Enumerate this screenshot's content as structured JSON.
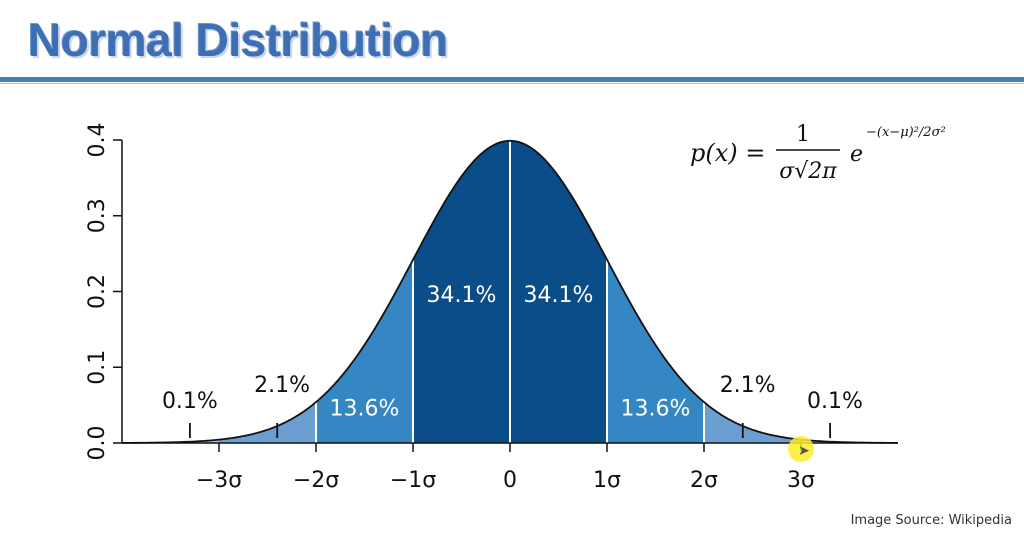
{
  "header": {
    "title": "Normal Distribution"
  },
  "footer": {
    "source": "Image Source: Wikipedia"
  },
  "formula": {
    "lhs": "p(x) =",
    "numerator": "1",
    "denominator": "σ√2π",
    "base": "e",
    "exponent": "−(x−μ)²/2σ²"
  },
  "colors": {
    "title": "#3f6fb3",
    "band_center": "#0b4d88",
    "band_1to2": "#3587c4",
    "band_2to3": "#6c9fd1",
    "band_tail": "#9cc0e4",
    "curve": "#111111",
    "highlight": "#ffec28"
  },
  "chart_data": {
    "type": "area",
    "distribution": "normal",
    "mean": 0,
    "sd": 1,
    "xlim": [
      -4,
      4
    ],
    "ylim": [
      0,
      0.4
    ],
    "y_ticks": [
      "0.0",
      "0.1",
      "0.2",
      "0.3",
      "0.4"
    ],
    "x_ticks": [
      {
        "x": -3,
        "label": "−3σ"
      },
      {
        "x": -2,
        "label": "−2σ"
      },
      {
        "x": -1,
        "label": "−1σ"
      },
      {
        "x": 0,
        "label": "0"
      },
      {
        "x": 1,
        "label": "1σ"
      },
      {
        "x": 2,
        "label": "2σ"
      },
      {
        "x": 3,
        "label": "3σ"
      }
    ],
    "bands": [
      {
        "from": -3,
        "to": -2,
        "color": "#6c9fd1"
      },
      {
        "from": -2,
        "to": -1,
        "color": "#3587c4"
      },
      {
        "from": -1,
        "to": 0,
        "color": "#0b4d88"
      },
      {
        "from": 0,
        "to": 1,
        "color": "#0b4d88"
      },
      {
        "from": 1,
        "to": 2,
        "color": "#3587c4"
      },
      {
        "from": 2,
        "to": 3,
        "color": "#6c9fd1"
      }
    ],
    "percent_labels": [
      {
        "x": -3.3,
        "y": 0.046,
        "label": "0.1%",
        "inside": false
      },
      {
        "x": -2.35,
        "y": 0.067,
        "label": "2.1%",
        "inside": false
      },
      {
        "x": -1.5,
        "y": 0.036,
        "label": "13.6%",
        "inside": true
      },
      {
        "x": -0.5,
        "y": 0.186,
        "label": "34.1%",
        "inside": true
      },
      {
        "x": 0.5,
        "y": 0.186,
        "label": "34.1%",
        "inside": true
      },
      {
        "x": 1.5,
        "y": 0.036,
        "label": "13.6%",
        "inside": true
      },
      {
        "x": 2.45,
        "y": 0.067,
        "label": "2.1%",
        "inside": false
      },
      {
        "x": 3.35,
        "y": 0.046,
        "label": "0.1%",
        "inside": false
      }
    ],
    "pointer_ticks": [
      -3.3,
      -2.4,
      2.4,
      3.3
    ],
    "grid": false
  }
}
